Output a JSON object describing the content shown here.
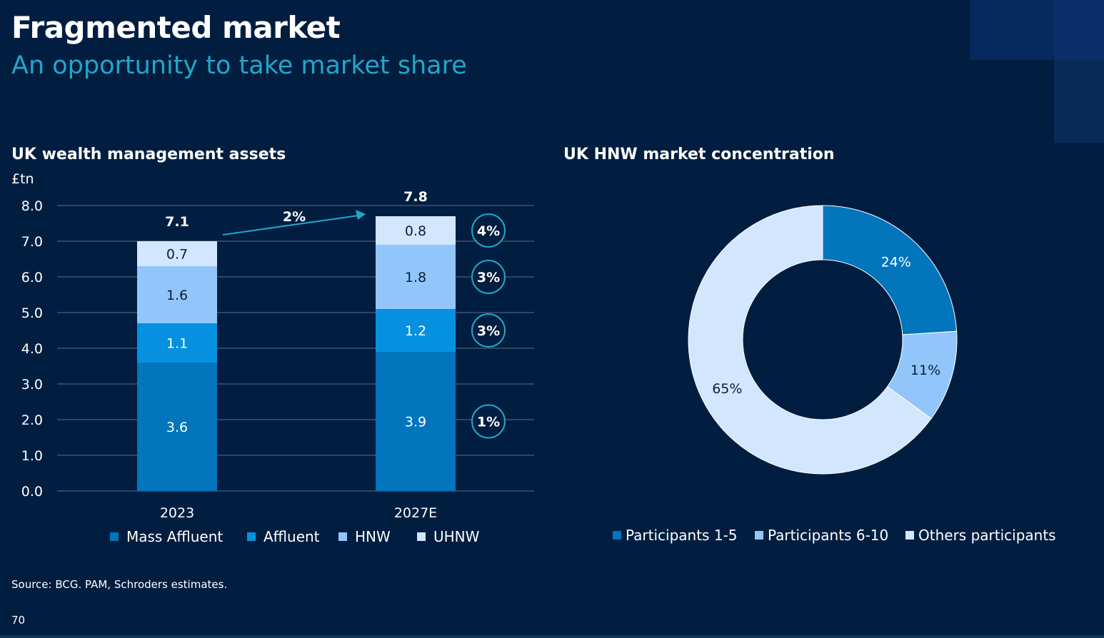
{
  "title": "Fragmented market",
  "subtitle": "An opportunity to take market share",
  "footer": {
    "source": "Source: BCG. PAM, Schroders estimates.",
    "page_number": "70"
  },
  "colors": {
    "background": "#011e41",
    "accent": "#22a6c9",
    "mass_affluent": "#0275bc",
    "affluent": "#0690e0",
    "hnw": "#92c6fb",
    "uhnw": "#d2e6fd",
    "gridline": "#5d6f86"
  },
  "chart_data": [
    {
      "type": "bar",
      "stacked": true,
      "title": "UK wealth management assets",
      "ylabel": "£tn",
      "xlabel": "",
      "ylim": [
        0,
        8
      ],
      "yticks": [
        "0.0",
        "1.0",
        "2.0",
        "3.0",
        "4.0",
        "5.0",
        "6.0",
        "7.0",
        "8.0"
      ],
      "categories": [
        "2023",
        "2027E"
      ],
      "series": [
        {
          "name": "Mass Affluent",
          "values": [
            3.6,
            3.9
          ],
          "labels": [
            "3.6",
            "3.9"
          ],
          "color_key": "mass_affluent",
          "cagr": "1%"
        },
        {
          "name": "Affluent",
          "values": [
            1.1,
            1.2
          ],
          "labels": [
            "1.1",
            "1.2"
          ],
          "color_key": "affluent",
          "cagr": "3%"
        },
        {
          "name": "HNW",
          "values": [
            1.6,
            1.8
          ],
          "labels": [
            "1.6",
            "1.8"
          ],
          "color_key": "hnw",
          "cagr": "3%"
        },
        {
          "name": "UHNW",
          "values": [
            0.7,
            0.8
          ],
          "labels": [
            "0.7",
            "0.8"
          ],
          "color_key": "uhnw",
          "cagr": "4%"
        }
      ],
      "totals": [
        7.1,
        7.8
      ],
      "total_labels": [
        "7.1",
        "7.8"
      ],
      "overall_growth_label": "2%",
      "legend": [
        "Mass Affluent",
        "Affluent",
        "HNW",
        "UHNW"
      ],
      "legend_position": "bottom",
      "grid": true
    },
    {
      "type": "pie",
      "donut": true,
      "title": "UK HNW market concentration",
      "slices": [
        {
          "name": "Participants 1-5",
          "value": 24,
          "label": "24%",
          "color_key": "mass_affluent"
        },
        {
          "name": "Participants 6-10",
          "value": 11,
          "label": "11%",
          "color_key": "hnw"
        },
        {
          "name": "Others participants",
          "value": 65,
          "label": "65%",
          "color_key": "uhnw"
        }
      ],
      "legend_position": "bottom"
    }
  ]
}
